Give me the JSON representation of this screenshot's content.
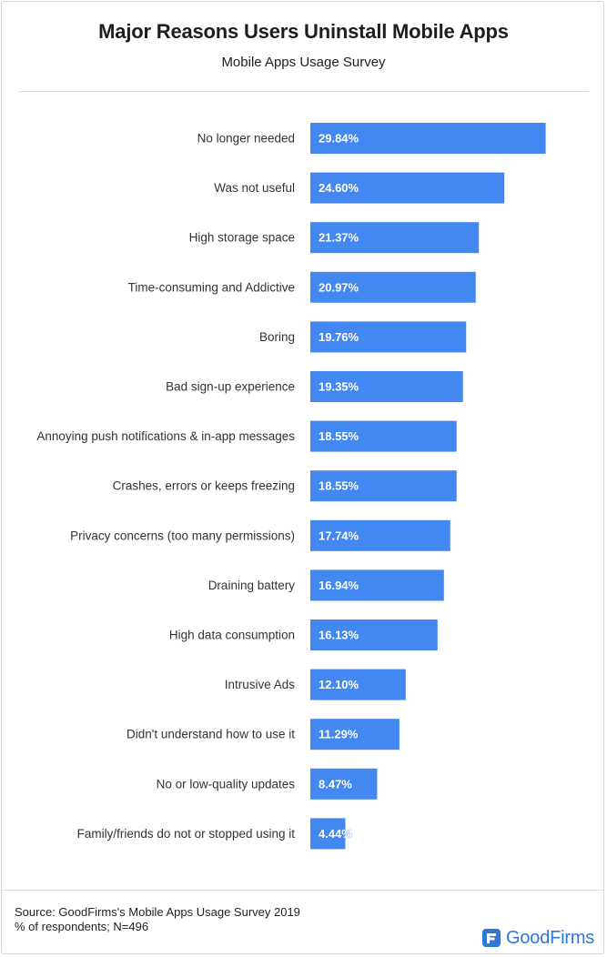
{
  "chart_data": {
    "type": "bar",
    "orientation": "horizontal",
    "title": "Major Reasons Users Uninstall Mobile Apps",
    "subtitle": "Mobile Apps Usage Survey",
    "categories": [
      "No longer needed",
      "Was not useful",
      "High storage space",
      "Time-consuming and Addictive",
      "Boring",
      "Bad sign-up experience",
      "Annoying push notifications & in-app messages",
      "Crashes, errors or keeps freezing",
      "Privacy concerns (too many permissions)",
      "Draining battery",
      "High data consumption",
      "Intrusive Ads",
      "Didn't understand how to use it",
      "No or low-quality updates",
      "Family/friends do not or stopped using it"
    ],
    "values": [
      29.84,
      24.6,
      21.37,
      20.97,
      19.76,
      19.35,
      18.55,
      18.55,
      17.74,
      16.94,
      16.13,
      12.1,
      11.29,
      8.47,
      4.44
    ],
    "value_labels": [
      "29.84%",
      "24.60%",
      "21.37%",
      "20.97%",
      "19.76%",
      "19.35%",
      "18.55%",
      "18.55%",
      "17.74%",
      "16.94%",
      "16.13%",
      "12.10%",
      "11.29%",
      "8.47%",
      "4.44%"
    ],
    "xlim": [
      0,
      30
    ],
    "grid": false,
    "legend": "none",
    "colors": {
      "bar": "#4387f0",
      "bar_label": "#ffffff",
      "bar_label_outside": "#4387f0"
    }
  },
  "footer": {
    "source_line": "Source: GoodFirms's Mobile Apps Usage Survey 2019",
    "note_line": "% of respondents; N=496",
    "brand": "GoodFirms",
    "brand_color": "#2f78d6",
    "brand_icon": "goodfirms-logo-icon"
  }
}
